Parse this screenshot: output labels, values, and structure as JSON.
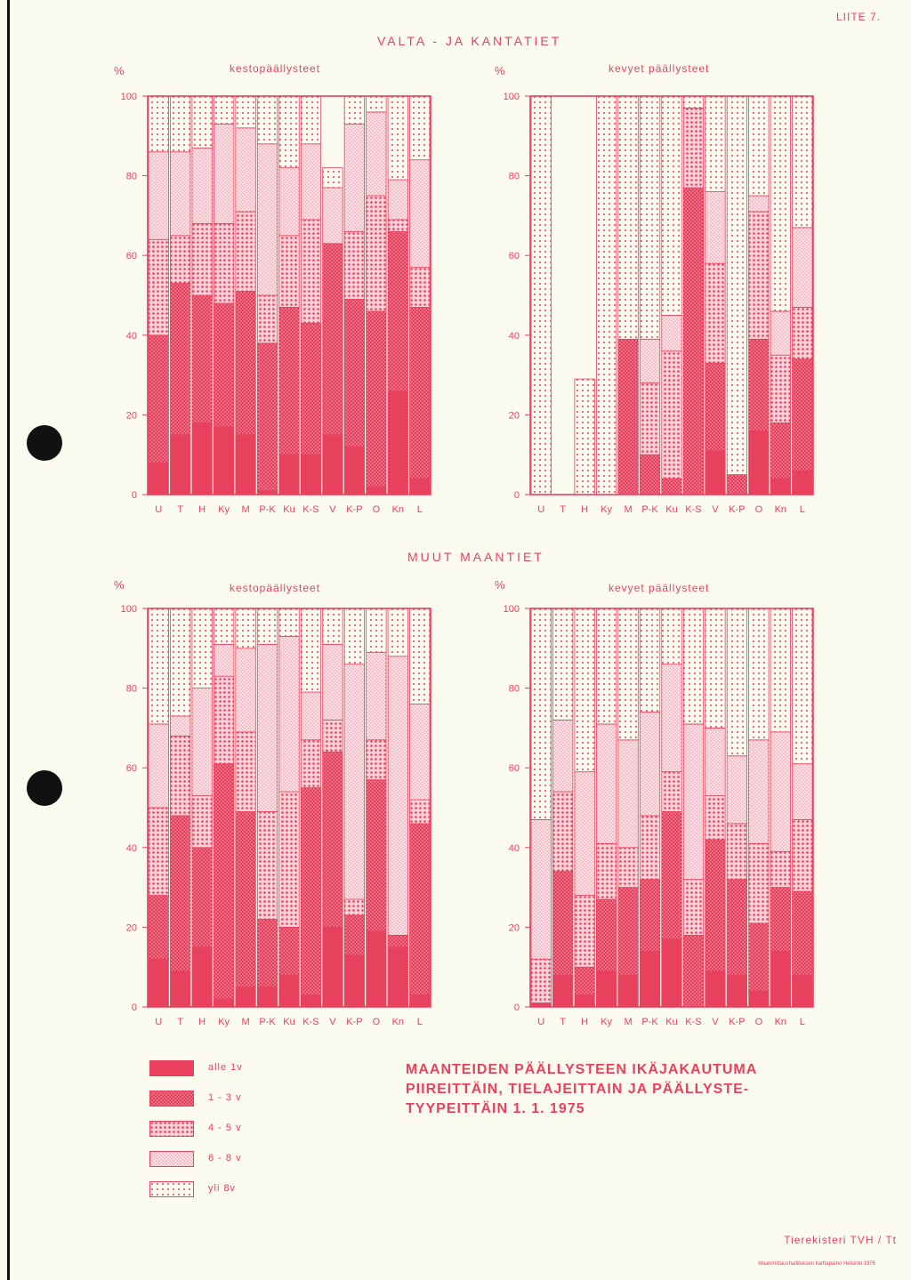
{
  "page": {
    "appendix_label": "LIITE 7.",
    "section_top": "VALTA - JA KANTATIET",
    "section_bottom": "MUUT MAANTIET",
    "main_title_lines": [
      "MAANTEIDEN PÄÄLLYSTEEN IKÄJAKAUTUMA",
      "PIIREITTÄIN, TIELAJEITTAIN JA PÄÄLLYSTE-",
      "TYYPEITTÄIN    1. 1. 1975"
    ],
    "footer": "Tierekisteri  TVH / Tt",
    "footer_small": "Maanmittaushallituksen karttapaino Helsinki 1976"
  },
  "legend": [
    {
      "label": "alle 1v",
      "pattern": "solid"
    },
    {
      "label": "1 - 3 v",
      "pattern": "dense"
    },
    {
      "label": "4 - 5 v",
      "pattern": "dots"
    },
    {
      "label": "6 - 8 v",
      "pattern": "light"
    },
    {
      "label": "yli 8v",
      "pattern": "sparse"
    }
  ],
  "colors": {
    "accent": "#e8415e",
    "paper": "#fbfbf0"
  },
  "chart_data": [
    {
      "type": "bar",
      "stacked": true,
      "title": "kestopäällysteet",
      "group": "VALTA - JA KANTATIET",
      "ylabel": "%",
      "ylim": [
        0,
        100
      ],
      "yticks": [
        0,
        20,
        40,
        60,
        80,
        100
      ],
      "categories": [
        "U",
        "T",
        "H",
        "Ky",
        "M",
        "P-K",
        "Ku",
        "K-S",
        "V",
        "K-P",
        "O",
        "Kn",
        "L"
      ],
      "series": [
        {
          "name": "alle 1v",
          "values": [
            8,
            15,
            18,
            17,
            15,
            1,
            10,
            10,
            15,
            12,
            2,
            26,
            4
          ]
        },
        {
          "name": "1 - 3 v",
          "values": [
            32,
            38,
            32,
            31,
            36,
            37,
            37,
            33,
            48,
            37,
            44,
            40,
            43
          ]
        },
        {
          "name": "4 - 5 v",
          "values": [
            24,
            12,
            18,
            20,
            20,
            12,
            18,
            26,
            0,
            17,
            29,
            3,
            10
          ]
        },
        {
          "name": "6 - 8 v",
          "values": [
            22,
            21,
            19,
            25,
            21,
            38,
            17,
            19,
            14,
            27,
            21,
            10,
            27
          ]
        },
        {
          "name": "yli 8v",
          "values": [
            14,
            14,
            13,
            7,
            8,
            12,
            18,
            12,
            5,
            7,
            4,
            21,
            16
          ]
        }
      ]
    },
    {
      "type": "bar",
      "stacked": true,
      "title": "kevyet päällysteet",
      "group": "VALTA - JA KANTATIET",
      "ylabel": "%",
      "ylim": [
        0,
        100
      ],
      "yticks": [
        0,
        20,
        40,
        60,
        80,
        100
      ],
      "categories": [
        "U",
        "T",
        "H",
        "Ky",
        "M",
        "P-K",
        "Ku",
        "K-S",
        "V",
        "K-P",
        "O",
        "Kn",
        "L"
      ],
      "series": [
        {
          "name": "alle 1v",
          "values": [
            0,
            0,
            0,
            0,
            0,
            0,
            0,
            0,
            11,
            0,
            16,
            4,
            6
          ]
        },
        {
          "name": "1 - 3 v",
          "values": [
            0,
            0,
            0,
            0,
            39,
            10,
            4,
            77,
            22,
            5,
            23,
            14,
            28
          ]
        },
        {
          "name": "4 - 5 v",
          "values": [
            0,
            0,
            0,
            0,
            0,
            18,
            32,
            20,
            25,
            0,
            32,
            17,
            13
          ]
        },
        {
          "name": "6 - 8 v",
          "values": [
            0,
            0,
            0,
            0,
            0,
            11,
            9,
            0,
            18,
            0,
            4,
            11,
            20
          ]
        },
        {
          "name": "yli 8v",
          "values": [
            100,
            0,
            29,
            100,
            61,
            61,
            55,
            3,
            24,
            95,
            25,
            54,
            33
          ]
        }
      ]
    },
    {
      "type": "bar",
      "stacked": true,
      "title": "kestopäällysteet",
      "group": "MUUT MAANTIET",
      "ylabel": "%",
      "ylim": [
        0,
        100
      ],
      "yticks": [
        0,
        20,
        40,
        60,
        80,
        100
      ],
      "categories": [
        "U",
        "T",
        "H",
        "Ky",
        "M",
        "P-K",
        "Ku",
        "K-S",
        "V",
        "K-P",
        "O",
        "Kn",
        "L"
      ],
      "series": [
        {
          "name": "alle 1v",
          "values": [
            12,
            9,
            15,
            2,
            5,
            5,
            8,
            3,
            20,
            13,
            19,
            15,
            3
          ]
        },
        {
          "name": "1 - 3 v",
          "values": [
            16,
            39,
            25,
            59,
            44,
            17,
            12,
            52,
            44,
            10,
            38,
            3,
            43
          ]
        },
        {
          "name": "4 - 5 v",
          "values": [
            22,
            20,
            13,
            22,
            20,
            27,
            34,
            12,
            8,
            4,
            10,
            0,
            6
          ]
        },
        {
          "name": "6 - 8 v",
          "values": [
            21,
            5,
            27,
            8,
            21,
            42,
            39,
            12,
            19,
            59,
            22,
            70,
            24
          ]
        },
        {
          "name": "yli 8v",
          "values": [
            29,
            27,
            20,
            9,
            10,
            9,
            7,
            21,
            9,
            14,
            11,
            12,
            24
          ]
        }
      ]
    },
    {
      "type": "bar",
      "stacked": true,
      "title": "kevyet päällysteet",
      "group": "MUUT MAANTIET",
      "ylabel": "%",
      "ylim": [
        0,
        100
      ],
      "yticks": [
        0,
        20,
        40,
        60,
        80,
        100
      ],
      "categories": [
        "U",
        "T",
        "H",
        "Ky",
        "M",
        "P-K",
        "Ku",
        "K-S",
        "V",
        "K-P",
        "O",
        "Kn",
        "L"
      ],
      "series": [
        {
          "name": "alle 1v",
          "values": [
            1,
            8,
            3,
            9,
            8,
            14,
            17,
            0,
            9,
            8,
            4,
            14,
            8
          ]
        },
        {
          "name": "1 - 3 v",
          "values": [
            0,
            26,
            7,
            18,
            22,
            18,
            32,
            18,
            33,
            24,
            17,
            16,
            21
          ]
        },
        {
          "name": "4 - 5 v",
          "values": [
            11,
            20,
            18,
            14,
            10,
            16,
            10,
            14,
            11,
            14,
            20,
            9,
            18
          ]
        },
        {
          "name": "6 - 8 v",
          "values": [
            35,
            18,
            31,
            30,
            27,
            26,
            27,
            39,
            17,
            17,
            26,
            30,
            14
          ]
        },
        {
          "name": "yli 8v",
          "values": [
            53,
            28,
            41,
            29,
            33,
            26,
            14,
            29,
            30,
            37,
            33,
            31,
            39
          ]
        }
      ]
    }
  ]
}
